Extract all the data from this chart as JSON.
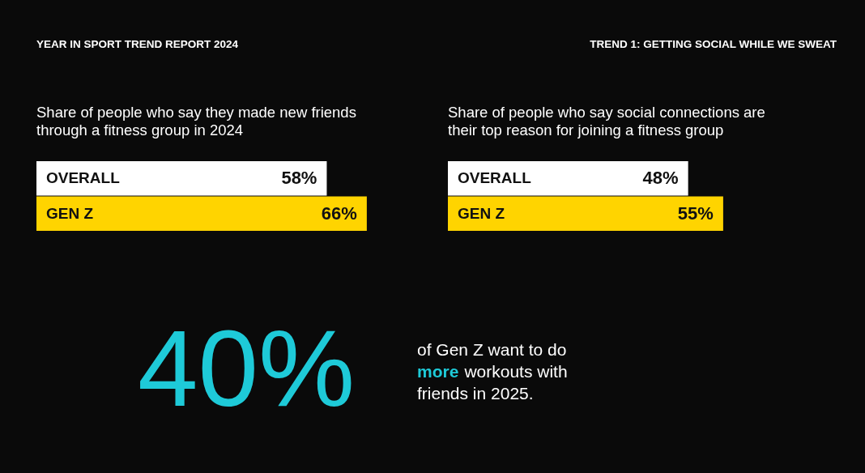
{
  "chart_data": [
    {
      "type": "other",
      "title": "YEAR IN SPORT TREND REPORT 2024",
      "subtitle": "TREND 1: GETTING SOCIAL WHILE WE SWEAT"
    },
    {
      "type": "bar",
      "orientation": "horizontal",
      "title": "Share of people who say they made new friends through a fitness group in 2024",
      "categories": [
        "OVERALL",
        "GEN Z"
      ],
      "values": [
        58,
        66
      ],
      "value_labels": [
        "58%",
        "66%"
      ],
      "colors": [
        "#ffffff",
        "#ffd400"
      ],
      "tick_labels": false
    },
    {
      "type": "bar",
      "orientation": "horizontal",
      "title": "Share of people who say social connections are their top reason for joining a fitness group",
      "categories": [
        "OVERALL",
        "GEN Z"
      ],
      "values": [
        48,
        55
      ],
      "value_labels": [
        "48%",
        "55%"
      ],
      "colors": [
        "#ffffff",
        "#ffd400"
      ],
      "tick_labels": false
    },
    {
      "type": "other",
      "color": "#1ecad8",
      "annotations": [
        "40%",
        "of Gen Z want to do more workouts with friends in 2025."
      ]
    }
  ]
}
